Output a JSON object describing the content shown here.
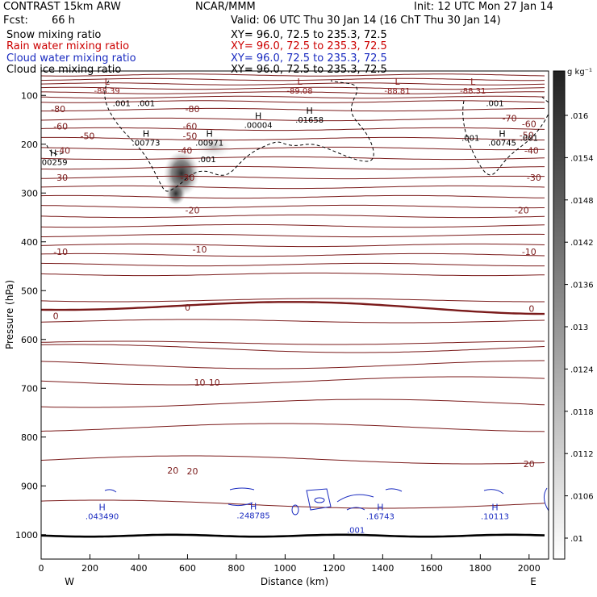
{
  "header": {
    "model": "CONTRAST 15km ARW",
    "center": "NCAR/MMM",
    "init": "Init: 12 UTC Mon 27 Jan 14",
    "fcst_label": "Fcst:",
    "fcst_value": "66 h",
    "valid": "Valid: 06 UTC Thu 30 Jan 14 (16 ChT Thu 30 Jan 14)",
    "fields": [
      {
        "name": "Snow mixing ratio",
        "xy": "XY=   96.0, 72.5 to 235.3, 72.5",
        "color": "#000000"
      },
      {
        "name": "Rain water mixing ratio",
        "xy": "XY=   96.0, 72.5 to 235.3, 72.5",
        "color": "#cc0000"
      },
      {
        "name": "Cloud water mixing ratio",
        "xy": "XY=   96.0, 72.5 to 235.3, 72.5",
        "color": "#1a2bc0"
      },
      {
        "name": "Cloud ice mixing ratio",
        "xy": "XY=   96.0, 72.5 to 235.3, 72.5",
        "color": "#000000"
      }
    ]
  },
  "chart_data": {
    "type": "cross-section contour",
    "xlabel": "Distance (km)",
    "ylabel": "Pressure (hPa)",
    "xlim": [
      0,
      2080
    ],
    "ylim": [
      1050,
      50
    ],
    "xticks": [
      0,
      200,
      400,
      600,
      800,
      1000,
      1200,
      1400,
      1600,
      1800,
      2000
    ],
    "yticks": [
      100,
      200,
      300,
      400,
      500,
      600,
      700,
      800,
      900,
      1000
    ],
    "x_ends": {
      "left": "W",
      "right": "E"
    },
    "colorbar": {
      "unit": "g kg⁻¹",
      "ticks": [
        ".016",
        ".0154",
        ".0148",
        ".0142",
        ".0136",
        ".013",
        ".0124",
        ".0118",
        ".0112",
        ".0106",
        ".01"
      ]
    },
    "temperature_labels": [
      {
        "text": "-80",
        "x": 70,
        "p": 128
      },
      {
        "text": "-80",
        "x": 620,
        "p": 128
      },
      {
        "text": "-70",
        "x": 1920,
        "p": 147
      },
      {
        "text": "-60",
        "x": 80,
        "p": 163
      },
      {
        "text": "-60",
        "x": 610,
        "p": 163
      },
      {
        "text": "-60",
        "x": 2000,
        "p": 158
      },
      {
        "text": "-50",
        "x": 190,
        "p": 183
      },
      {
        "text": "-50",
        "x": 610,
        "p": 183
      },
      {
        "text": "-50",
        "x": 1990,
        "p": 181
      },
      {
        "text": "-40",
        "x": 90,
        "p": 213
      },
      {
        "text": "-40",
        "x": 590,
        "p": 213
      },
      {
        "text": "-40",
        "x": 2010,
        "p": 213
      },
      {
        "text": "-30",
        "x": 80,
        "p": 268
      },
      {
        "text": "-30",
        "x": 600,
        "p": 268
      },
      {
        "text": "-30",
        "x": 2020,
        "p": 268
      },
      {
        "text": "-20",
        "x": 620,
        "p": 335
      },
      {
        "text": "-20",
        "x": 1970,
        "p": 335
      },
      {
        "text": "-10",
        "x": 80,
        "p": 420
      },
      {
        "text": "-10",
        "x": 650,
        "p": 415
      },
      {
        "text": "-10",
        "x": 2000,
        "p": 420
      },
      {
        "text": "0",
        "x": 60,
        "p": 552
      },
      {
        "text": "0",
        "x": 600,
        "p": 534
      },
      {
        "text": "0",
        "x": 2010,
        "p": 537
      },
      {
        "text": "10",
        "x": 650,
        "p": 688
      },
      {
        "text": "10",
        "x": 710,
        "p": 688
      },
      {
        "text": "20",
        "x": 540,
        "p": 868
      },
      {
        "text": "20",
        "x": 620,
        "p": 870
      },
      {
        "text": "20",
        "x": 2000,
        "p": 855
      }
    ],
    "extrema": [
      {
        "kind": "L",
        "value": "-88.39",
        "x": 270,
        "p": 78,
        "color": "#8b1a1a"
      },
      {
        "kind": "L",
        "value": "-89.08",
        "x": 1060,
        "p": 78,
        "color": "#8b1a1a"
      },
      {
        "kind": "L",
        "value": "-88.81",
        "x": 1460,
        "p": 78,
        "color": "#8b1a1a"
      },
      {
        "kind": "L",
        "value": "-88.31",
        "x": 1770,
        "p": 78,
        "color": "#8b1a1a"
      },
      {
        "kind": "H",
        "value": ".00259",
        "x": 50,
        "p": 224,
        "color": "#000000"
      },
      {
        "kind": "H",
        "value": ".00773",
        "x": 430,
        "p": 185,
        "color": "#000000"
      },
      {
        "kind": "H",
        "value": ".00971",
        "x": 690,
        "p": 185,
        "color": "#000000"
      },
      {
        "kind": "H",
        "value": ".00004",
        "x": 890,
        "p": 148,
        "color": "#000000"
      },
      {
        "kind": "H",
        "value": ".01658",
        "x": 1100,
        "p": 138,
        "color": "#000000"
      },
      {
        "kind": "H",
        "value": ".00745",
        "x": 1890,
        "p": 185,
        "color": "#000000"
      },
      {
        "kind": "H",
        "value": ".043490",
        "x": 250,
        "p": 950,
        "color": "#1a2bc0"
      },
      {
        "kind": "H",
        "value": ".248785",
        "x": 870,
        "p": 948,
        "color": "#1a2bc0"
      },
      {
        "kind": "H",
        "value": ".16743",
        "x": 1390,
        "p": 950,
        "color": "#1a2bc0"
      },
      {
        "kind": "H",
        "value": ".10113",
        "x": 1860,
        "p": 950,
        "color": "#1a2bc0"
      }
    ],
    "contour_value_labels": [
      {
        "text": ".001",
        "x": 330,
        "p": 115
      },
      {
        "text": ".001",
        "x": 430,
        "p": 115
      },
      {
        "text": ".001",
        "x": 1860,
        "p": 115
      },
      {
        "text": ".001",
        "x": 1760,
        "p": 186
      },
      {
        "text": ".001",
        "x": 2000,
        "p": 186
      },
      {
        "text": ".001",
        "x": 680,
        "p": 230
      },
      {
        "text": ".001",
        "x": 1290,
        "p": 990,
        "color": "#1a2bc0"
      }
    ]
  }
}
